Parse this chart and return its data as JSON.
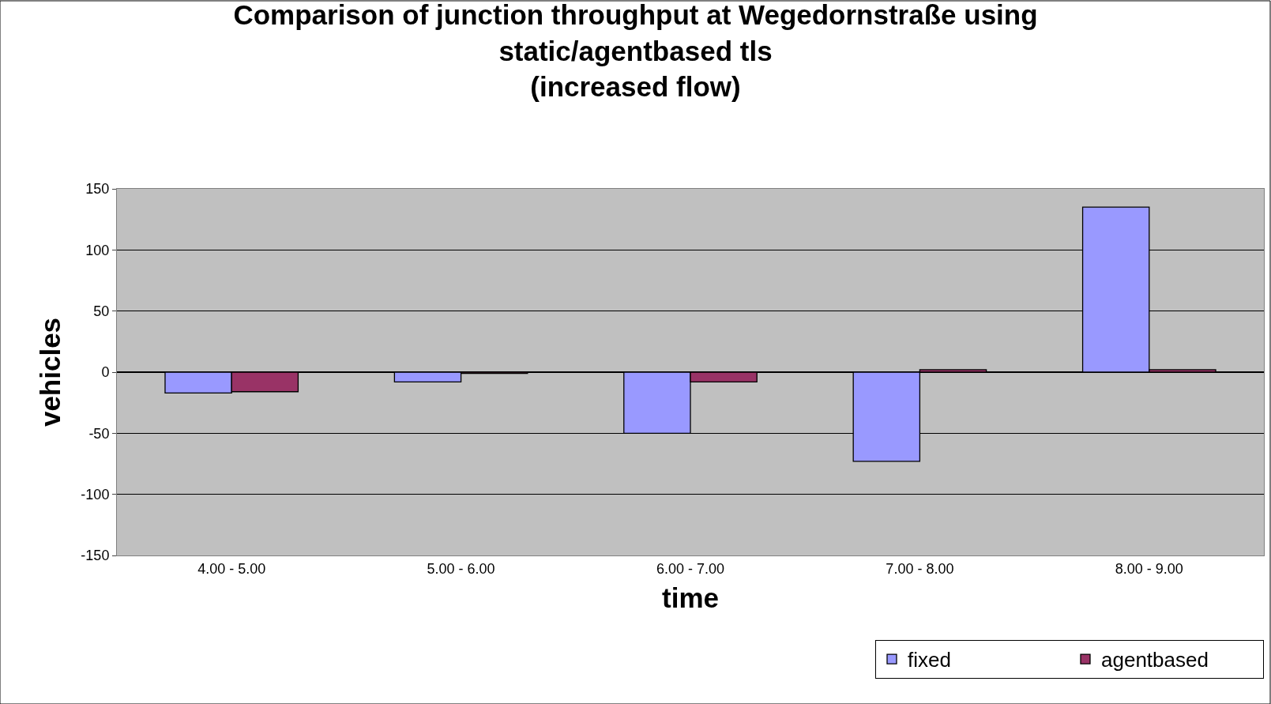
{
  "chart_data": {
    "type": "bar",
    "title": "Comparison of junction throughput at Wegedornstraße using\nstatic/agentbased tls\n(increased flow)",
    "xlabel": "time",
    "ylabel": "vehicles",
    "categories": [
      "4.00 - 5.00",
      "5.00 - 6.00",
      "6.00 - 7.00",
      "7.00 - 8.00",
      "8.00 - 9.00"
    ],
    "series": [
      {
        "name": "fixed",
        "color": "#9999ff",
        "values": [
          -17,
          -8,
          -50,
          -73,
          135
        ]
      },
      {
        "name": "agentbased",
        "color": "#993366",
        "values": [
          -16,
          -1,
          -8,
          2,
          2
        ]
      }
    ],
    "ylim": [
      -150,
      150
    ],
    "yticks": [
      -150,
      -100,
      -50,
      0,
      50,
      100,
      150
    ],
    "grid": "y",
    "legend": "bottom right"
  }
}
